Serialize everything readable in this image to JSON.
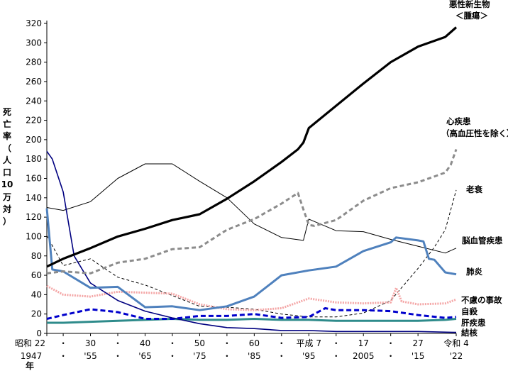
{
  "chart_data": {
    "type": "line",
    "title": "",
    "ylabel": [
      "死",
      "亡",
      "率",
      "（",
      "人",
      "口",
      "10",
      "万",
      "対",
      "）"
    ],
    "xlabel": "年",
    "ylim": [
      0,
      320
    ],
    "yticks": [
      0,
      20,
      40,
      60,
      80,
      100,
      120,
      140,
      160,
      180,
      200,
      220,
      240,
      260,
      280,
      300,
      320
    ],
    "xlim": [
      1947,
      2022
    ],
    "xticks": [
      {
        "x": 1947,
        "top": "昭和 22",
        "bottom": "1947"
      },
      {
        "x": 1950,
        "top": "・",
        "bottom": "・"
      },
      {
        "x": 1955,
        "top": "30",
        "bottom": "'55"
      },
      {
        "x": 1960,
        "top": "・",
        "bottom": "・"
      },
      {
        "x": 1965,
        "top": "40",
        "bottom": "'65"
      },
      {
        "x": 1970,
        "top": "・",
        "bottom": "・"
      },
      {
        "x": 1975,
        "top": "50",
        "bottom": "'75"
      },
      {
        "x": 1980,
        "top": "・",
        "bottom": "・"
      },
      {
        "x": 1985,
        "top": "60",
        "bottom": "'85"
      },
      {
        "x": 1990,
        "top": "・",
        "bottom": "・"
      },
      {
        "x": 1995,
        "top": "平成 7",
        "bottom": "'95"
      },
      {
        "x": 2000,
        "top": "・",
        "bottom": "・"
      },
      {
        "x": 2005,
        "top": "17",
        "bottom": "2005"
      },
      {
        "x": 2010,
        "top": "・",
        "bottom": "・"
      },
      {
        "x": 2015,
        "top": "27",
        "bottom": "'15"
      },
      {
        "x": 2022,
        "top": "令和 4",
        "bottom": "'22"
      }
    ],
    "series": [
      {
        "key": "cancer",
        "name": [
          "悪性新生物",
          "＜腫瘍＞"
        ],
        "color": "#000000",
        "width": 3.2,
        "dash": "",
        "x": [
          1947,
          1950,
          1955,
          1960,
          1965,
          1970,
          1975,
          1980,
          1985,
          1990,
          1993,
          1994,
          1995,
          2000,
          2005,
          2010,
          2015,
          2020,
          2022
        ],
        "values": [
          69,
          77,
          88,
          100,
          108,
          117,
          123,
          139,
          157,
          177,
          190,
          197,
          212,
          235,
          258,
          280,
          296,
          306,
          316
        ]
      },
      {
        "key": "heart",
        "name": [
          "心疾患",
          "（高血圧性を除く）"
        ],
        "color": "#8c8c8c",
        "width": 3,
        "dash": "6,4",
        "x": [
          1947,
          1950,
          1955,
          1960,
          1965,
          1970,
          1975,
          1980,
          1985,
          1990,
          1993,
          1994,
          1995,
          1996,
          2000,
          2005,
          2010,
          2015,
          2020,
          2021,
          2022
        ],
        "values": [
          62,
          64,
          62,
          73,
          77,
          87,
          89,
          107,
          118,
          134,
          145,
          128,
          112,
          111,
          117,
          137,
          150,
          156,
          166,
          174,
          190
        ]
      },
      {
        "key": "senility",
        "name": [
          "老衰"
        ],
        "color": "#000000",
        "width": 1,
        "dash": "4,3",
        "x": [
          1947,
          1950,
          1955,
          1960,
          1965,
          1970,
          1975,
          1980,
          1985,
          1990,
          1995,
          2000,
          2005,
          2010,
          2015,
          2018,
          2020,
          2022
        ],
        "values": [
          101,
          70,
          77,
          58,
          50,
          39,
          28,
          27,
          25,
          20,
          17,
          17,
          21,
          34,
          67,
          89,
          107,
          148
        ]
      },
      {
        "key": "stroke",
        "name": [
          "脳血管疾患"
        ],
        "color": "#000000",
        "width": 1,
        "dash": "",
        "x": [
          1947,
          1950,
          1955,
          1960,
          1965,
          1970,
          1975,
          1980,
          1985,
          1990,
          1994,
          1995,
          2000,
          2005,
          2010,
          2015,
          2020,
          2022
        ],
        "values": [
          130,
          127,
          136,
          160,
          175,
          175,
          157,
          140,
          113,
          99,
          96,
          118,
          106,
          105,
          97,
          90,
          83,
          88
        ]
      },
      {
        "key": "pneumonia",
        "name": [
          "肺炎"
        ],
        "color": "#4f81bd",
        "width": 3,
        "dash": "",
        "x": [
          1947,
          1948,
          1950,
          1955,
          1960,
          1965,
          1970,
          1975,
          1980,
          1985,
          1990,
          1995,
          2000,
          2005,
          2010,
          2011,
          2015,
          2016,
          2017,
          2018,
          2020,
          2022
        ],
        "values": [
          129,
          66,
          64,
          47,
          48,
          27,
          28,
          24,
          28,
          38,
          60,
          65,
          69,
          85,
          94,
          99,
          96,
          95,
          77,
          76,
          63,
          61
        ]
      },
      {
        "key": "accident",
        "name": [
          "不慮の事故"
        ],
        "color": "#f4a6a6",
        "width": 3,
        "dash": "2,1.5",
        "x": [
          1947,
          1950,
          1955,
          1960,
          1965,
          1970,
          1975,
          1980,
          1985,
          1990,
          1995,
          2000,
          2005,
          2010,
          2011,
          2012,
          2015,
          2020,
          2022
        ],
        "values": [
          49,
          40,
          38,
          43,
          42,
          41,
          30,
          25,
          24,
          26,
          36,
          32,
          31,
          32,
          47,
          33,
          30,
          31,
          35
        ]
      },
      {
        "key": "suicide",
        "name": [
          "自殺"
        ],
        "color": "#0000cc",
        "width": 3,
        "dash": "7,4",
        "x": [
          1947,
          1950,
          1955,
          1960,
          1965,
          1970,
          1975,
          1980,
          1985,
          1990,
          1995,
          1998,
          2000,
          2005,
          2010,
          2015,
          2020,
          2022
        ],
        "values": [
          15,
          19,
          25,
          22,
          15,
          15,
          18,
          18,
          20,
          16,
          17,
          26,
          24,
          24,
          23,
          19,
          16,
          17
        ]
      },
      {
        "key": "liver",
        "name": [
          "肝疾患"
        ],
        "color": "#2e8b8b",
        "width": 3,
        "dash": "",
        "x": [
          1947,
          1950,
          1955,
          1960,
          1965,
          1970,
          1975,
          1980,
          1985,
          1990,
          1995,
          2000,
          2005,
          2010,
          2015,
          2020,
          2022
        ],
        "values": [
          11,
          11,
          12,
          13,
          14,
          15,
          14,
          14,
          15,
          14,
          14,
          13,
          13,
          13,
          13,
          14,
          15
        ]
      },
      {
        "key": "tb",
        "name": [
          "結核"
        ],
        "color": "#000080",
        "width": 1.6,
        "dash": "",
        "x": [
          1947,
          1948,
          1950,
          1952,
          1955,
          1960,
          1965,
          1970,
          1975,
          1980,
          1985,
          1990,
          1995,
          2000,
          2005,
          2010,
          2015,
          2022
        ],
        "values": [
          188,
          180,
          146,
          80,
          52,
          34,
          23,
          16,
          10,
          6,
          5,
          3,
          3,
          2,
          2,
          2,
          2,
          1
        ]
      }
    ]
  }
}
